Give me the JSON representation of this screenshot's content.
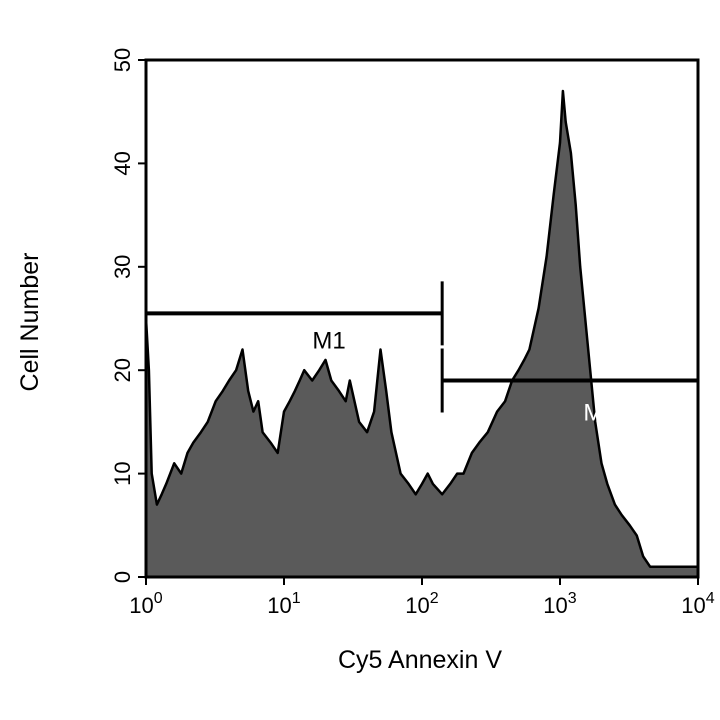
{
  "chart_data": {
    "type": "area",
    "xlabel": "Cy5 Annexin V",
    "ylabel": "Cell Number",
    "x_scale": "log",
    "xlim": [
      1,
      10000
    ],
    "ylim": [
      0,
      50
    ],
    "x_ticks": [
      {
        "value": 1,
        "base": "10",
        "exp": "0"
      },
      {
        "value": 10,
        "base": "10",
        "exp": "1"
      },
      {
        "value": 100,
        "base": "10",
        "exp": "2"
      },
      {
        "value": 1000,
        "base": "10",
        "exp": "3"
      },
      {
        "value": 10000,
        "base": "10",
        "exp": "4"
      }
    ],
    "y_ticks": [
      "0",
      "10",
      "20",
      "30",
      "40",
      "50"
    ],
    "grid": false,
    "fill_color": "#5a5a5a",
    "line_color": "#000000",
    "series": [
      {
        "x": [
          1,
          1.05,
          1.1,
          1.2,
          1.3,
          1.4,
          1.6,
          1.8,
          2.0,
          2.2,
          2.5,
          2.8,
          3.2,
          3.6,
          4.0,
          4.5,
          5.0,
          5.5,
          6.0,
          6.5,
          7.0,
          8.0,
          9.0,
          10,
          11,
          12,
          13,
          14,
          16,
          18,
          20,
          22,
          25,
          28,
          30,
          35,
          40,
          45,
          50,
          55,
          60,
          70,
          80,
          90,
          100,
          110,
          120,
          140,
          160,
          180,
          200,
          230,
          260,
          300,
          350,
          400,
          450,
          500,
          550,
          600,
          700,
          800,
          900,
          1000,
          1050,
          1100,
          1200,
          1300,
          1400,
          1600,
          1800,
          2000,
          2200,
          2500,
          2800,
          3200,
          3600,
          4000,
          4500,
          5000,
          6000,
          7000,
          8000,
          9000,
          10000
        ],
        "y": [
          25,
          20,
          10,
          7,
          8,
          9,
          11,
          10,
          12,
          13,
          14,
          15,
          17,
          18,
          19,
          20,
          22,
          18,
          16,
          17,
          14,
          13,
          12,
          16,
          17,
          18,
          19,
          20,
          19,
          20,
          21,
          19,
          18,
          17,
          19,
          15,
          14,
          16,
          22,
          18,
          14,
          10,
          9,
          8,
          9,
          10,
          9,
          8,
          9,
          10,
          10,
          12,
          13,
          14,
          16,
          17,
          19,
          20,
          21,
          22,
          26,
          31,
          37,
          42,
          47,
          44,
          41,
          36,
          30,
          22,
          15,
          11,
          9,
          7,
          6,
          5,
          4,
          2,
          1,
          1,
          1,
          1,
          1,
          1,
          1
        ]
      }
    ],
    "markers": [
      {
        "label": "M1",
        "from": 1,
        "to": 140,
        "level": 25.5
      },
      {
        "label": "M2",
        "from": 140,
        "to": 10000,
        "level": 19
      }
    ]
  }
}
